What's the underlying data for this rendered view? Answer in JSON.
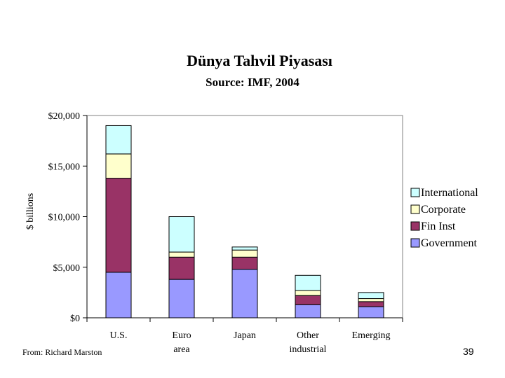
{
  "page": {
    "title": "Dünya Tahvil Piyasası",
    "subtitle": "Source: IMF, 2004",
    "source_note": "From: Richard Marston",
    "page_number": "39"
  },
  "chart_data": {
    "type": "bar",
    "stacked": true,
    "title": "Dünya Tahvil Piyasası",
    "subtitle": "Source: IMF, 2004",
    "ylabel": "$ billions",
    "xlabel": "",
    "ylim": [
      0,
      20000
    ],
    "yticks": [
      0,
      5000,
      10000,
      15000,
      20000
    ],
    "ytick_labels": [
      "$0",
      "$5,000",
      "$10,000",
      "$15,000",
      "$20,000"
    ],
    "categories": [
      "U.S.",
      "Euro area",
      "Japan",
      "Other industrial",
      "Emerging"
    ],
    "series": [
      {
        "name": "Government",
        "color": "#9999ff",
        "values": [
          4500,
          3800,
          4800,
          1300,
          1100
        ]
      },
      {
        "name": "Fin Inst",
        "color": "#993366",
        "values": [
          9300,
          2200,
          1200,
          900,
          500
        ]
      },
      {
        "name": "Corporate",
        "color": "#ffffcc",
        "values": [
          2400,
          500,
          700,
          500,
          300
        ]
      },
      {
        "name": "International",
        "color": "#ccffff",
        "values": [
          2800,
          3500,
          300,
          1500,
          600
        ]
      }
    ],
    "grid": false,
    "legend_position": "right"
  }
}
